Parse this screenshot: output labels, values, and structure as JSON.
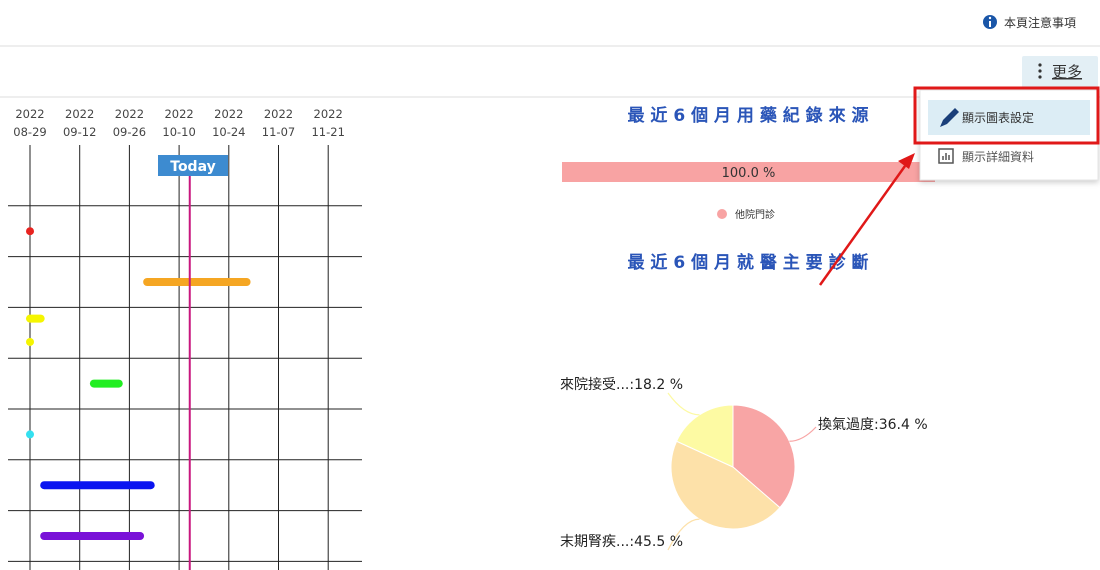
{
  "header": {
    "notice": "本頁注意事項"
  },
  "toolbar": {
    "more": "更多"
  },
  "menu": {
    "items": [
      "顯示圖表設定",
      "顯示詳細資料"
    ]
  },
  "timeline": {
    "ticks": [
      {
        "year": "2022",
        "date": "08-29"
      },
      {
        "year": "2022",
        "date": "09-12"
      },
      {
        "year": "2022",
        "date": "09-26"
      },
      {
        "year": "2022",
        "date": "10-10"
      },
      {
        "year": "2022",
        "date": "10-24"
      },
      {
        "year": "2022",
        "date": "11-07"
      },
      {
        "year": "2022",
        "date": "11-21"
      }
    ],
    "today": {
      "label": "Today",
      "date": "2022-10-13"
    },
    "rows": [
      [],
      [
        {
          "start": "2022-08-29",
          "end": "2022-08-29",
          "color": "#e8231f"
        }
      ],
      [
        {
          "start": "2022-10-01",
          "end": "2022-10-29",
          "color": "#f5a623"
        }
      ],
      [
        {
          "start": "2022-08-29",
          "end": "2022-09-01",
          "color": "#f5f500"
        },
        {
          "start": "2022-08-29",
          "end": "2022-08-29",
          "color": "#f5f500"
        }
      ],
      [
        {
          "start": "2022-09-16",
          "end": "2022-09-23",
          "color": "#22ee22"
        }
      ],
      [
        {
          "start": "2022-08-29",
          "end": "2022-08-29",
          "color": "#33e0f0"
        }
      ],
      [
        {
          "start": "2022-09-02",
          "end": "2022-10-02",
          "color": "#0a14f0"
        }
      ],
      [
        {
          "start": "2022-09-02",
          "end": "2022-09-29",
          "color": "#7a12d8"
        }
      ]
    ]
  },
  "medication": {
    "title": "最 近 6 個 月 用 藥 紀 錄 來 源",
    "values": [
      100
    ],
    "value_labels": [
      "100.0 %"
    ],
    "legend": [
      "他院門診"
    ],
    "color": "#f8a3a3"
  },
  "diagnosis": {
    "title": "最 近 6 個 月 就 醫 主 要 診 斷",
    "type": "pie",
    "slices": [
      {
        "label": "換氣過度:36.4 %",
        "value": 36.4,
        "color": "#f8a5a5"
      },
      {
        "label": "末期腎疾...:45.5 %",
        "value": 45.5,
        "color": "#fde1a9"
      },
      {
        "label": "來院接受...:18.2 %",
        "value": 18.2,
        "color": "#fdfaa3"
      }
    ]
  }
}
